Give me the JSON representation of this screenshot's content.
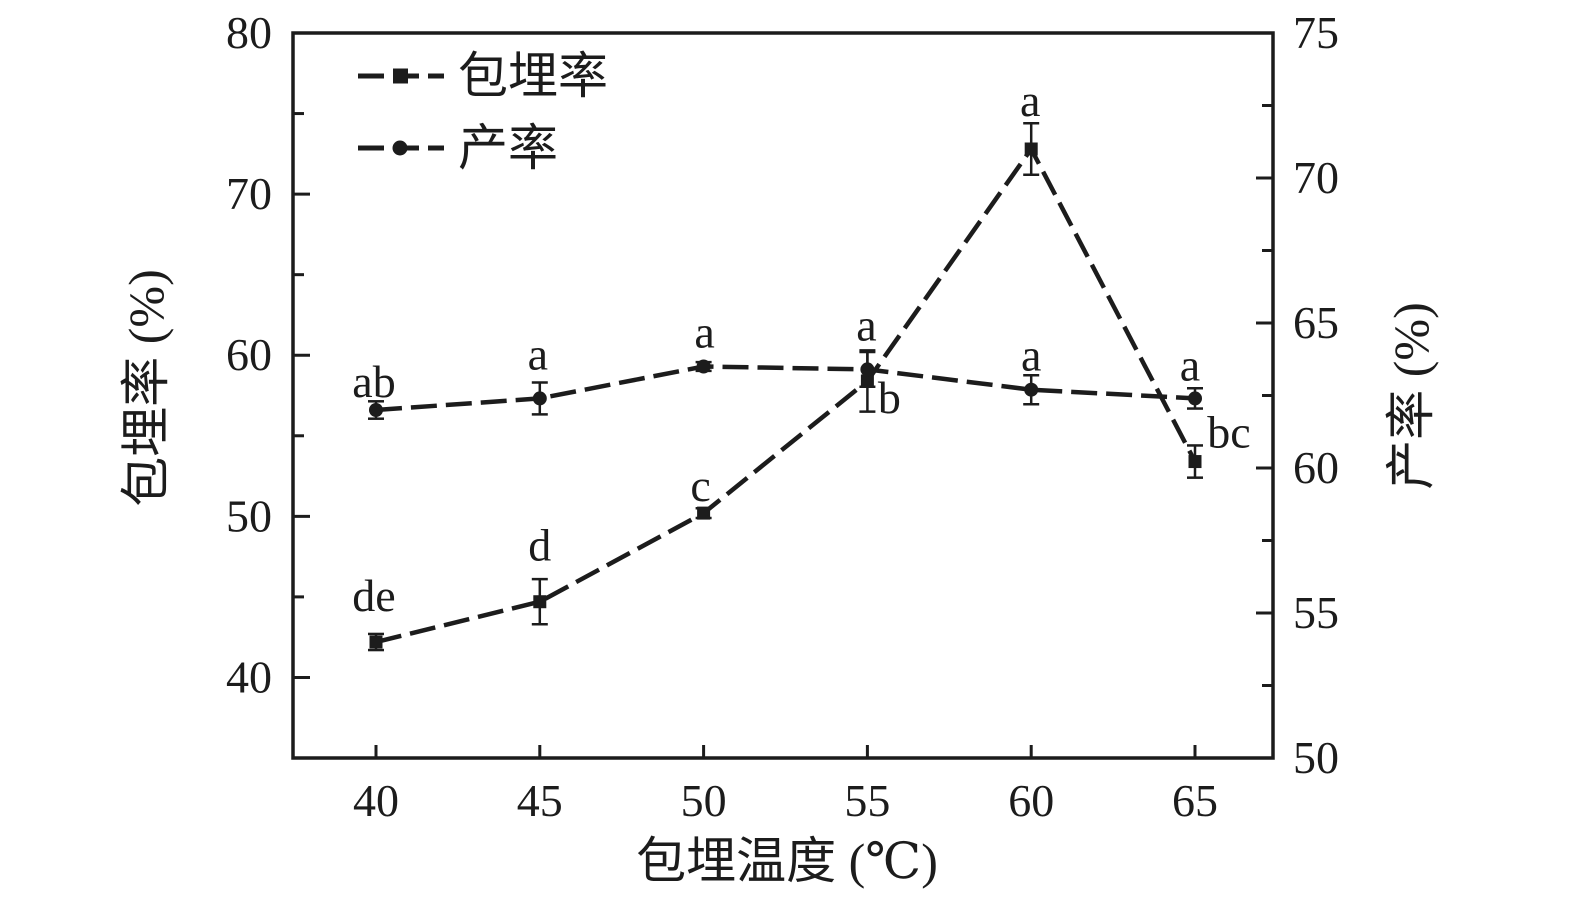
{
  "chart_data": {
    "type": "line",
    "title": "",
    "x": [
      40,
      45,
      50,
      55,
      60,
      65
    ],
    "xlabel": "包埋温度 (℃)",
    "x_axis": {
      "ticks": [
        40,
        45,
        50,
        55,
        60,
        65
      ],
      "min": 37.5,
      "max": 67.5
    },
    "left_axis": {
      "label": "包埋率 (%)",
      "min": 35,
      "max": 80,
      "major_ticks": [
        40,
        50,
        60,
        70,
        80
      ],
      "minor_ticks": [
        45,
        55,
        65,
        75
      ]
    },
    "right_axis": {
      "label": "产率 (%)",
      "min": 50,
      "max": 75,
      "major_ticks": [
        50,
        55,
        60,
        65,
        70,
        75
      ],
      "minor_ticks": [
        52.5,
        57.5,
        62.5,
        67.5,
        72.5
      ]
    },
    "series": [
      {
        "name": "包埋率",
        "axis": "left",
        "marker": "square",
        "values": [
          42.2,
          44.7,
          50.2,
          58.4,
          72.8,
          53.4
        ],
        "errors": [
          0.5,
          1.4,
          0.3,
          1.9,
          1.6,
          1.0
        ],
        "point_labels": [
          "de",
          "d",
          "c",
          "b",
          "a",
          "bc"
        ],
        "label_offsets": [
          [
            -2,
            -46
          ],
          [
            0,
            -56
          ],
          [
            -3,
            -27
          ],
          [
            22,
            17
          ],
          [
            -1,
            -48
          ],
          [
            34,
            -29
          ]
        ]
      },
      {
        "name": "产率",
        "axis": "right",
        "marker": "circle",
        "values": [
          62.0,
          62.4,
          63.5,
          63.4,
          62.7,
          62.4
        ],
        "errors": [
          0.3,
          0.55,
          0.15,
          0.6,
          0.5,
          0.35
        ],
        "point_labels": [
          "ab",
          "a",
          "a",
          "a",
          "a",
          "a"
        ],
        "label_offsets": [
          [
            -2,
            -28
          ],
          [
            -2,
            -44
          ],
          [
            1,
            -34
          ],
          [
            -1,
            -44
          ],
          [
            0,
            -34
          ],
          [
            -5,
            -33
          ]
        ]
      }
    ],
    "legend": {
      "position": "top-left",
      "entries": [
        "包埋率",
        "产率"
      ]
    },
    "grid": false,
    "line_style": "dashed",
    "color": "#1c1c1c",
    "background": "#ffffff"
  }
}
